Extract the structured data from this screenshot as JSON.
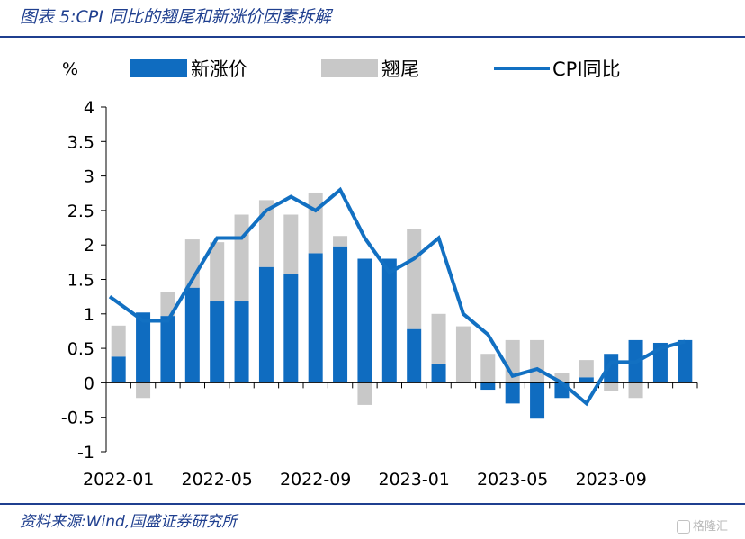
{
  "header": {
    "title": "图表 5:CPI 同比的翘尾和新涨价因素拆解"
  },
  "footer": {
    "source": "资料来源:Wind,国盛证券研究所",
    "watermark": "格隆汇"
  },
  "colors": {
    "new_price": "#0f6cc0",
    "carryover": "#c8c8c8",
    "cpi": "#1270c2",
    "rule": "#1f3f8f"
  },
  "chart_data": {
    "type": "bar",
    "ylabel": "%",
    "ylim": [
      -1,
      4
    ],
    "yticks": [
      -1,
      -0.5,
      0,
      0.5,
      1,
      1.5,
      2,
      2.5,
      3,
      3.5,
      4
    ],
    "ytick_labels": [
      "-1",
      "-0.5",
      "0",
      "0.5",
      "1",
      "1.5",
      "2",
      "2.5",
      "3",
      "3.5",
      "4"
    ],
    "categories": [
      "2022-01",
      "2022-02",
      "2022-03",
      "2022-04",
      "2022-05",
      "2022-06",
      "2022-07",
      "2022-08",
      "2022-09",
      "2022-10",
      "2022-11",
      "2022-12",
      "2023-01",
      "2023-02",
      "2023-03",
      "2023-04",
      "2023-05",
      "2023-06",
      "2023-07",
      "2023-08",
      "2023-09",
      "2023-10",
      "2023-11",
      "2023-12"
    ],
    "xtick_labels": [
      "2022-01",
      "2022-05",
      "2022-09",
      "2023-01",
      "2023-05",
      "2023-09"
    ],
    "legend_position": "top",
    "series": [
      {
        "name": "新涨价",
        "kind": "bar",
        "values": [
          0.38,
          1.02,
          0.97,
          1.38,
          1.18,
          1.18,
          1.68,
          1.58,
          1.88,
          1.98,
          1.8,
          1.8,
          0.78,
          0.28,
          0,
          -0.1,
          -0.3,
          -0.52,
          -0.22,
          0.08,
          0.42,
          0.62,
          0.58,
          0.62
        ]
      },
      {
        "name": "翘尾",
        "kind": "bar",
        "values": [
          0.45,
          -0.22,
          0.35,
          0.7,
          0.86,
          1.26,
          0.97,
          0.86,
          0.88,
          0.15,
          -0.32,
          0,
          1.45,
          0.72,
          0.82,
          0.42,
          0.62,
          0.62,
          0.14,
          0.25,
          -0.12,
          -0.22,
          0,
          0
        ]
      },
      {
        "name": "CPI同比",
        "kind": "line",
        "values": [
          1.25,
          0.9,
          0.9,
          1.5,
          2.1,
          2.1,
          2.5,
          2.7,
          2.5,
          2.8,
          2.1,
          1.6,
          1.8,
          2.1,
          1.0,
          0.7,
          0.1,
          0.2,
          0.0,
          -0.3,
          0.3,
          0.3,
          0.5,
          0.6
        ]
      }
    ]
  }
}
